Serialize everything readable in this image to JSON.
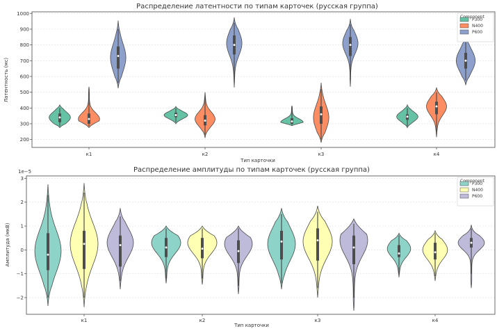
{
  "chart_data": [
    {
      "type": "violin",
      "title": "Распределение латентности по типам карточек (русская группа)",
      "xlabel": "Тип карточки",
      "ylabel": "Латентность (мс)",
      "categories": [
        "к1",
        "к2",
        "к3",
        "к4"
      ],
      "ylim": [
        150,
        1010
      ],
      "yticks": [
        200,
        300,
        400,
        500,
        600,
        700,
        800,
        900,
        1000
      ],
      "yticklabels": [
        "200",
        "300",
        "400",
        "500",
        "600",
        "700",
        "800",
        "900",
        "1000"
      ],
      "legend": {
        "title": "Component",
        "position": "top-right"
      },
      "grid": true,
      "series": [
        {
          "name": "P300",
          "color": "#66c2a5",
          "edge": "#4a4a4a",
          "violins": [
            {
              "min": 275,
              "max": 420,
              "mode": 340,
              "spread": 35,
              "q1": 310,
              "median": 340,
              "q3": 365,
              "wmin": 285,
              "wmax": 400,
              "width": 0.9
            },
            {
              "min": 300,
              "max": 410,
              "mode": 355,
              "spread": 22,
              "q1": 342,
              "median": 355,
              "q3": 370,
              "wmin": 312,
              "wmax": 398,
              "width": 1.0
            },
            {
              "min": 288,
              "max": 415,
              "mode": 310,
              "spread": 22,
              "q1": 300,
              "median": 315,
              "q3": 335,
              "wmin": 292,
              "wmax": 400,
              "width": 0.95
            },
            {
              "min": 275,
              "max": 420,
              "mode": 345,
              "spread": 30,
              "q1": 325,
              "median": 345,
              "q3": 360,
              "wmin": 285,
              "wmax": 400,
              "width": 0.9
            }
          ]
        },
        {
          "name": "N400",
          "color": "#fc8d62",
          "edge": "#4a4a4a",
          "violins": [
            {
              "min": 275,
              "max": 535,
              "mode": 330,
              "spread": 40,
              "q1": 300,
              "median": 330,
              "q3": 365,
              "wmin": 285,
              "wmax": 500,
              "width": 0.9
            },
            {
              "min": 210,
              "max": 500,
              "mode": 330,
              "spread": 45,
              "q1": 290,
              "median": 320,
              "q3": 355,
              "wmin": 230,
              "wmax": 470,
              "width": 0.85
            },
            {
              "min": 180,
              "max": 560,
              "mode": 340,
              "spread": 80,
              "q1": 300,
              "median": 360,
              "q3": 410,
              "wmin": 200,
              "wmax": 520,
              "width": 0.65
            },
            {
              "min": 215,
              "max": 530,
              "mode": 410,
              "spread": 55,
              "q1": 360,
              "median": 410,
              "q3": 440,
              "wmin": 250,
              "wmax": 500,
              "width": 0.85
            }
          ]
        },
        {
          "name": "P600",
          "color": "#8da0cb",
          "edge": "#4a4a4a",
          "violins": [
            {
              "min": 525,
              "max": 955,
              "mode": 720,
              "spread": 90,
              "q1": 650,
              "median": 730,
              "q3": 790,
              "wmin": 560,
              "wmax": 900,
              "width": 0.65
            },
            {
              "min": 530,
              "max": 975,
              "mode": 810,
              "spread": 75,
              "q1": 740,
              "median": 800,
              "q3": 860,
              "wmin": 580,
              "wmax": 940,
              "width": 0.65
            },
            {
              "min": 535,
              "max": 965,
              "mode": 810,
              "spread": 65,
              "q1": 730,
              "median": 800,
              "q3": 850,
              "wmin": 580,
              "wmax": 930,
              "width": 0.65
            },
            {
              "min": 545,
              "max": 860,
              "mode": 700,
              "spread": 70,
              "q1": 650,
              "median": 700,
              "q3": 750,
              "wmin": 575,
              "wmax": 830,
              "width": 0.8
            }
          ]
        }
      ]
    },
    {
      "type": "violin",
      "title": "Распределение амплитуды по типам карточек (русская группа)",
      "xlabel": "Тип карточки",
      "ylabel": "Амплитуда (мкВ)",
      "offset_label": "1e−5",
      "categories": [
        "к1",
        "к2",
        "к3",
        "к4"
      ],
      "ylim": [
        -2.7,
        3.1
      ],
      "yticks": [
        -2,
        -1,
        0,
        1,
        2,
        3
      ],
      "yticklabels": [
        "−2",
        "−1",
        "0",
        "1",
        "2",
        "3"
      ],
      "legend": {
        "title": "Component",
        "position": "top-right"
      },
      "grid": true,
      "series": [
        {
          "name": "P300",
          "color": "#8dd3c7",
          "edge": "#4a4a4a",
          "violins": [
            {
              "min": -2.35,
              "max": 2.75,
              "mode": -0.05,
              "spread": 0.9,
              "q1": -0.85,
              "median": -0.2,
              "q3": 0.7,
              "wmin": -2.0,
              "wmax": 2.3,
              "width": 0.9
            },
            {
              "min": -1.4,
              "max": 1.0,
              "mode": 0.3,
              "spread": 0.45,
              "q1": -0.3,
              "median": 0.1,
              "q3": 0.5,
              "wmin": -1.2,
              "wmax": 0.9,
              "width": 1.0
            },
            {
              "min": -1.65,
              "max": 1.75,
              "mode": 0.25,
              "spread": 0.7,
              "q1": -0.4,
              "median": 0.35,
              "q3": 0.8,
              "wmin": -1.4,
              "wmax": 1.5,
              "width": 0.95
            },
            {
              "min": -1.15,
              "max": 0.7,
              "mode": 0.05,
              "spread": 0.35,
              "q1": -0.3,
              "median": -0.15,
              "q3": 0.2,
              "wmin": -1.0,
              "wmax": 0.6,
              "width": 0.8
            }
          ]
        },
        {
          "name": "N400",
          "color": "#ffffb3",
          "edge": "#4a4a4a",
          "violins": [
            {
              "min": -2.4,
              "max": 2.8,
              "mode": 0.25,
              "spread": 0.9,
              "q1": -0.8,
              "median": 0.25,
              "q3": 0.8,
              "wmin": -2.0,
              "wmax": 2.4,
              "width": 0.95
            },
            {
              "min": -1.45,
              "max": 1.0,
              "mode": 0.3,
              "spread": 0.45,
              "q1": -0.35,
              "median": 0.05,
              "q3": 0.5,
              "wmin": -1.2,
              "wmax": 0.9,
              "width": 1.0
            },
            {
              "min": -2.0,
              "max": 1.85,
              "mode": 0.35,
              "spread": 0.7,
              "q1": -0.45,
              "median": 0.4,
              "q3": 0.9,
              "wmin": -1.6,
              "wmax": 1.6,
              "width": 1.0
            },
            {
              "min": -1.3,
              "max": 0.8,
              "mode": 0.0,
              "spread": 0.4,
              "q1": -0.4,
              "median": -0.1,
              "q3": 0.3,
              "wmin": -1.1,
              "wmax": 0.7,
              "width": 0.85
            }
          ]
        },
        {
          "name": "P600",
          "color": "#bebada",
          "edge": "#4a4a4a",
          "violins": [
            {
              "min": -1.65,
              "max": 1.75,
              "mode": 0.3,
              "spread": 0.6,
              "q1": -0.7,
              "median": 0.2,
              "q3": 0.6,
              "wmin": -1.3,
              "wmax": 1.4,
              "width": 0.9
            },
            {
              "min": -1.85,
              "max": 1.0,
              "mode": 0.25,
              "spread": 0.5,
              "q1": -0.55,
              "median": -0.05,
              "q3": 0.4,
              "wmin": -1.5,
              "wmax": 0.9,
              "width": 0.95
            },
            {
              "min": -2.55,
              "max": 1.3,
              "mode": 0.4,
              "spread": 0.65,
              "q1": -0.6,
              "median": 0.1,
              "q3": 0.6,
              "wmin": -2.0,
              "wmax": 1.1,
              "width": 0.95
            },
            {
              "min": -1.6,
              "max": 1.05,
              "mode": 0.3,
              "spread": 0.3,
              "q1": 0.1,
              "median": 0.3,
              "q3": 0.5,
              "wmin": -1.0,
              "wmax": 0.9,
              "width": 0.9
            }
          ]
        }
      ]
    }
  ]
}
